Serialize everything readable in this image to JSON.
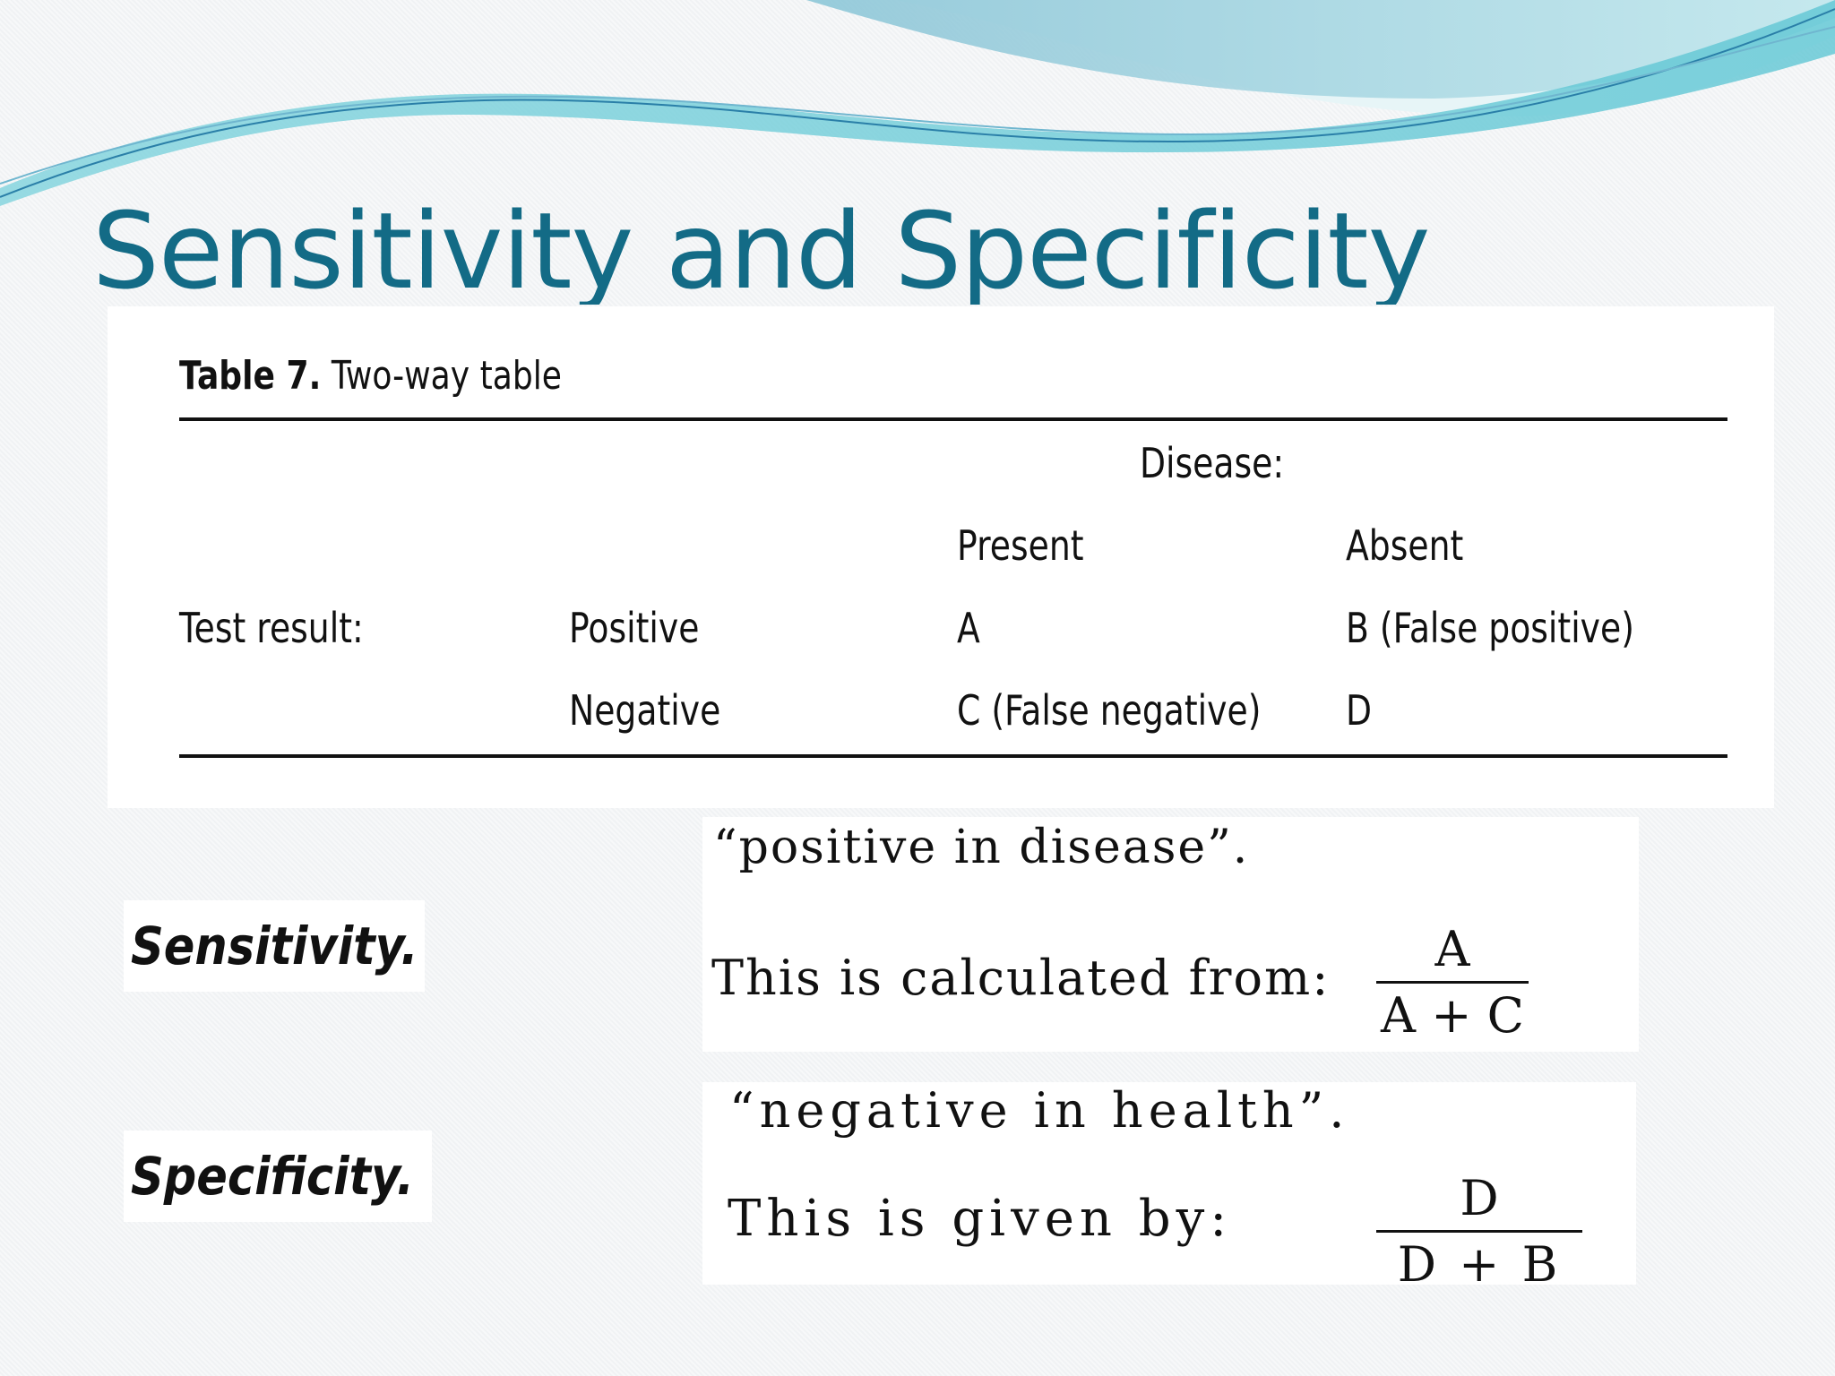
{
  "title": "Sensitivity and Specificity",
  "table": {
    "caption_bold": "Table 7.",
    "caption_rest": "Two-way table",
    "disease_header": "Disease:",
    "col_present": "Present",
    "col_absent": "Absent",
    "row_label": "Test result:",
    "rows": [
      {
        "result": "Positive",
        "present": "A",
        "absent": "B (False positive)"
      },
      {
        "result": "Negative",
        "present": "C (False negative)",
        "absent": "D"
      }
    ]
  },
  "sensitivity": {
    "label": "Sensitivity.",
    "quote": "“positive in disease”.",
    "intro": "This is calculated from:",
    "numerator": "A",
    "denominator": "A + C"
  },
  "specificity": {
    "label": "Specificity.",
    "quote": "“negative in health”.",
    "intro": "This is given by:",
    "numerator": "D",
    "denominator": "D + B"
  },
  "colors": {
    "title": "#136b86",
    "wave_dark": "#5fb3c9",
    "wave_light": "#a6dbe3"
  }
}
